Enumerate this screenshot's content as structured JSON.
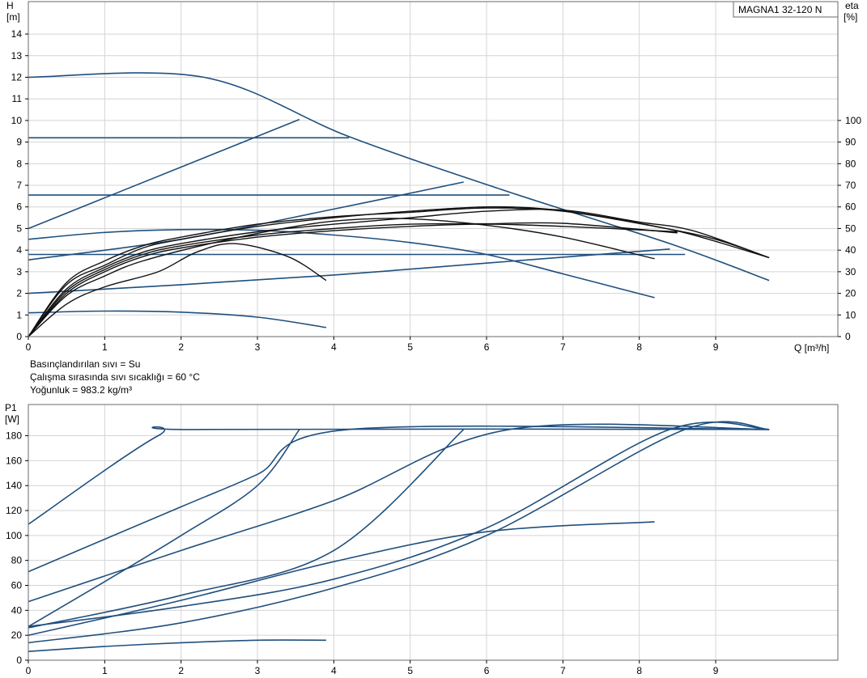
{
  "colors": {
    "blue_curve": "#1f4f7e",
    "eta_curve": "#111111",
    "grid": "#d4d4d4"
  },
  "legend_box": "MAGNA1 32-120 N",
  "notes": [
    "Basınçlandırılan sıvı = Su",
    "Çalışma sırasında sıvı sıcaklığı = 60 °C",
    "Yoğunluk = 983.2 kg/m³"
  ],
  "chart_data": [
    {
      "type": "line",
      "name": "head-chart",
      "ylabel_line1": "H",
      "ylabel_line2": "[m]",
      "y2label_line1": "eta",
      "y2label_line2": "[%]",
      "xlabel": "Q [m³/h]",
      "xlim": [
        0,
        10.6
      ],
      "ylim": [
        0,
        15.5
      ],
      "y2lim": [
        0,
        155
      ],
      "x_ticks": [
        0,
        1,
        2,
        3,
        4,
        5,
        6,
        7,
        8,
        9
      ],
      "y_ticks": [
        0,
        1,
        2,
        3,
        4,
        5,
        6,
        7,
        8,
        9,
        10,
        11,
        12,
        13,
        14
      ],
      "y2_ticks": [
        0,
        10,
        20,
        30,
        40,
        50,
        60,
        70,
        80,
        90,
        100
      ],
      "grid": true,
      "head_series": [
        {
          "points": [
            [
              0,
              12
            ],
            [
              2.3,
              12
            ],
            [
              4.2,
              9.25
            ],
            [
              6.2,
              6.8
            ],
            [
              8.4,
              4.3
            ],
            [
              9.7,
              2.6
            ]
          ]
        },
        {
          "points": [
            [
              0,
              9.2
            ],
            [
              4.2,
              9.2
            ]
          ]
        },
        {
          "points": [
            [
              0,
              5.0
            ],
            [
              3.55,
              10.05
            ]
          ]
        },
        {
          "points": [
            [
              0,
              6.55
            ],
            [
              6.3,
              6.55
            ]
          ]
        },
        {
          "points": [
            [
              0,
              3.55
            ],
            [
              2,
              4.5
            ],
            [
              4,
              5.9
            ],
            [
              5.7,
              7.15
            ]
          ]
        },
        {
          "points": [
            [
              0,
              4.5
            ],
            [
              1,
              4.82
            ],
            [
              2,
              4.95
            ],
            [
              3,
              4.92
            ],
            [
              4,
              4.7
            ],
            [
              5,
              4.35
            ],
            [
              6,
              3.8
            ],
            [
              7,
              2.9
            ],
            [
              8.2,
              1.8
            ]
          ]
        },
        {
          "points": [
            [
              0,
              3.8
            ],
            [
              8.6,
              3.8
            ]
          ]
        },
        {
          "points": [
            [
              0,
              2.0
            ],
            [
              2,
              2.4
            ],
            [
              4,
              2.85
            ],
            [
              6,
              3.4
            ],
            [
              8.4,
              4.05
            ]
          ]
        },
        {
          "points": [
            [
              0,
              1.1
            ],
            [
              1,
              1.18
            ],
            [
              2,
              1.13
            ],
            [
              3,
              0.9
            ],
            [
              3.9,
              0.42
            ]
          ]
        }
      ],
      "eta_series": [
        {
          "points": [
            [
              0,
              0
            ],
            [
              0.5,
              15
            ],
            [
              1,
              23
            ],
            [
              1.7,
              30
            ],
            [
              2.2,
              39
            ],
            [
              2.7,
              43
            ],
            [
              3.4,
              37
            ],
            [
              3.9,
              26
            ]
          ]
        },
        {
          "points": [
            [
              0,
              0
            ],
            [
              0.5,
              19
            ],
            [
              1,
              28
            ],
            [
              1.5,
              35
            ],
            [
              2.5,
              44
            ],
            [
              3.5,
              51
            ],
            [
              4.2,
              54
            ],
            [
              5,
              54.5
            ],
            [
              6,
              51.5
            ],
            [
              7,
              46
            ],
            [
              8.2,
              36
            ]
          ]
        },
        {
          "points": [
            [
              0,
              0
            ],
            [
              0.5,
              20
            ],
            [
              1,
              30
            ],
            [
              1.5,
              37
            ],
            [
              2,
              41
            ],
            [
              3,
              46
            ],
            [
              4,
              49
            ],
            [
              5,
              51
            ],
            [
              6,
              52
            ],
            [
              7,
              51
            ],
            [
              8.5,
              48.5
            ]
          ]
        },
        {
          "points": [
            [
              0,
              0
            ],
            [
              0.5,
              21
            ],
            [
              1,
              31
            ],
            [
              1.5,
              38
            ],
            [
              2,
              42
            ],
            [
              3,
              47
            ],
            [
              4,
              50
            ],
            [
              5,
              52
            ],
            [
              6,
              52.2
            ],
            [
              7,
              52.4
            ],
            [
              8.5,
              48
            ]
          ]
        },
        {
          "points": [
            [
              0,
              0
            ],
            [
              0.5,
              22
            ],
            [
              1,
              32
            ],
            [
              1.5,
              39
            ],
            [
              2,
              43
            ],
            [
              3,
              48.5
            ],
            [
              4,
              52
            ],
            [
              5,
              55
            ],
            [
              6,
              58
            ],
            [
              7,
              58.5
            ],
            [
              8,
              53
            ],
            [
              8.7,
              49
            ],
            [
              9.7,
              36.5
            ]
          ]
        },
        {
          "points": [
            [
              0,
              0
            ],
            [
              0.5,
              24
            ],
            [
              1,
              33
            ],
            [
              1.5,
              41
            ],
            [
              2,
              45
            ],
            [
              3,
              51
            ],
            [
              4,
              55
            ],
            [
              5,
              58
            ],
            [
              6,
              60
            ],
            [
              6.8,
              59
            ],
            [
              7.6,
              55
            ],
            [
              8.6,
              48
            ],
            [
              9.7,
              36.5
            ]
          ]
        },
        {
          "points": [
            [
              0,
              0
            ],
            [
              0.5,
              25
            ],
            [
              1,
              35
            ],
            [
              1.5,
              42
            ],
            [
              2,
              46
            ],
            [
              3,
              52
            ],
            [
              4,
              55.5
            ],
            [
              5,
              57.5
            ],
            [
              6,
              59.5
            ],
            [
              7,
              58
            ],
            [
              8.2,
              51
            ],
            [
              9,
              45
            ],
            [
              9.7,
              36.5
            ]
          ]
        }
      ]
    },
    {
      "type": "line",
      "name": "power-chart",
      "ylabel_line1": "P1",
      "ylabel_line2": "[W]",
      "xlim": [
        0,
        10.6
      ],
      "ylim": [
        0,
        205
      ],
      "x_ticks": [
        0,
        1,
        2,
        3,
        4,
        5,
        6,
        7,
        8,
        9
      ],
      "y_ticks": [
        0,
        20,
        40,
        60,
        80,
        100,
        120,
        140,
        160,
        180
      ],
      "grid": true,
      "series": [
        {
          "points": [
            [
              0,
              109
            ],
            [
              1.7,
              180
            ],
            [
              2.3,
              185
            ],
            [
              9.7,
              185
            ]
          ]
        },
        {
          "points": [
            [
              0,
              71
            ],
            [
              2,
              123
            ],
            [
              3,
              149
            ],
            [
              4.2,
              185
            ],
            [
              9.7,
              185
            ]
          ]
        },
        {
          "points": [
            [
              0,
              47
            ],
            [
              2,
              88
            ],
            [
              4,
              128
            ],
            [
              6.3,
              185
            ],
            [
              9.7,
              185
            ]
          ]
        },
        {
          "points": [
            [
              0,
              27
            ],
            [
              1,
              63
            ],
            [
              2,
              100
            ],
            [
              3,
              140
            ],
            [
              3.55,
              185
            ]
          ]
        },
        {
          "points": [
            [
              0,
              26
            ],
            [
              2,
              52
            ],
            [
              4,
              88
            ],
            [
              5.7,
              185
            ]
          ]
        },
        {
          "points": [
            [
              0,
              20
            ],
            [
              2,
              48
            ],
            [
              4,
              79
            ],
            [
              6,
              103
            ],
            [
              8.2,
              111
            ]
          ]
        },
        {
          "points": [
            [
              0,
              14
            ],
            [
              2,
              30
            ],
            [
              4,
              58
            ],
            [
              6,
              100
            ],
            [
              8.6,
              185
            ],
            [
              9.7,
              185
            ]
          ]
        },
        {
          "points": [
            [
              0,
              27
            ],
            [
              2,
              43
            ],
            [
              4,
              65
            ],
            [
              6,
              106
            ],
            [
              8.4,
              185
            ],
            [
              9.7,
              185
            ]
          ]
        },
        {
          "points": [
            [
              0,
              7
            ],
            [
              1,
              11
            ],
            [
              2,
              14
            ],
            [
              3,
              16
            ],
            [
              3.9,
              16
            ]
          ]
        }
      ]
    }
  ]
}
